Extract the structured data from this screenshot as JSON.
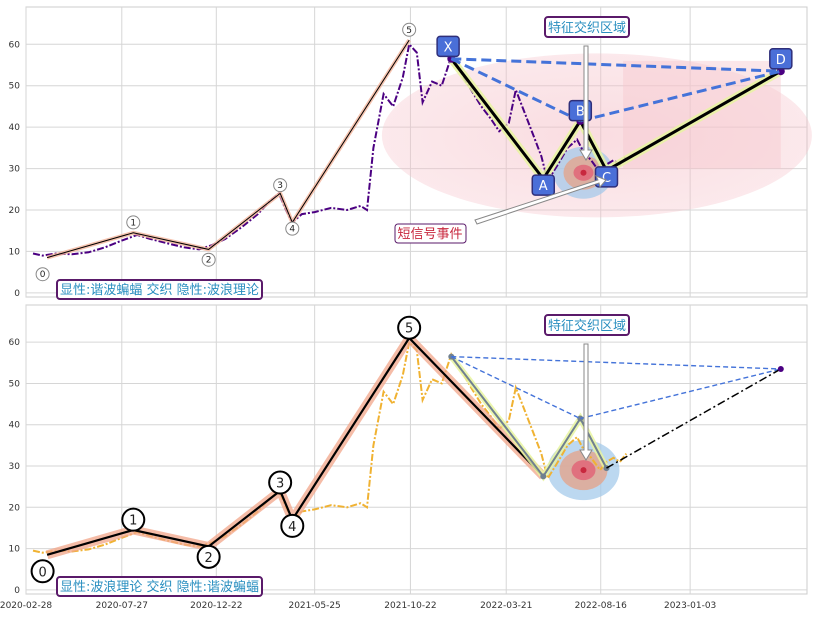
{
  "chart_data": [
    {
      "type": "line",
      "title": "",
      "ylim": [
        -1,
        69
      ],
      "yticks": [
        0,
        10,
        20,
        30,
        40,
        50,
        60
      ],
      "xlim": [
        "2020-02-28",
        "2023-07-05"
      ],
      "xticks": [
        "2020-02-28",
        "2020-07-27",
        "2020-12-22",
        "2021-05-25",
        "2021-10-22",
        "2022-03-21",
        "2022-08-16",
        "2023-01-03"
      ],
      "grid": true,
      "series": [
        {
          "style": "price-dashdot",
          "color": "#4b0082",
          "points": [
            [
              "2020-03-10",
              9.5
            ],
            [
              "2020-03-25",
              9
            ],
            [
              "2020-04-15",
              9.5
            ],
            [
              "2020-05-10",
              9.3
            ],
            [
              "2020-06-05",
              9.8
            ],
            [
              "2020-07-01",
              11
            ],
            [
              "2020-07-25",
              12.5
            ],
            [
              "2020-08-20",
              14
            ],
            [
              "2020-09-10",
              13
            ],
            [
              "2020-10-05",
              12
            ],
            [
              "2020-11-01",
              11
            ],
            [
              "2020-11-25",
              10.5
            ],
            [
              "2020-12-15",
              11.5
            ],
            [
              "2021-01-05",
              13
            ],
            [
              "2021-02-01",
              16
            ],
            [
              "2021-02-25",
              19
            ],
            [
              "2021-03-15",
              22
            ],
            [
              "2021-03-30",
              24
            ],
            [
              "2021-04-10",
              20
            ],
            [
              "2021-04-20",
              17
            ],
            [
              "2021-05-05",
              19
            ],
            [
              "2021-05-25",
              19.5
            ],
            [
              "2021-06-20",
              20.5
            ],
            [
              "2021-07-15",
              20
            ],
            [
              "2021-08-05",
              21
            ],
            [
              "2021-08-15",
              20
            ],
            [
              "2021-08-25",
              35
            ],
            [
              "2021-09-10",
              48
            ],
            [
              "2021-09-25",
              45
            ],
            [
              "2021-10-10",
              52
            ],
            [
              "2021-10-20",
              60
            ],
            [
              "2021-11-01",
              58
            ],
            [
              "2021-11-10",
              46
            ],
            [
              "2021-11-25",
              51
            ],
            [
              "2021-12-10",
              50
            ],
            [
              "2021-12-25",
              57
            ],
            [
              "2022-01-10",
              53
            ],
            [
              "2022-01-25",
              49
            ],
            [
              "2022-02-10",
              45
            ],
            [
              "2022-02-25",
              42
            ],
            [
              "2022-03-10",
              39
            ],
            [
              "2022-03-25",
              41
            ],
            [
              "2022-04-05",
              49
            ],
            [
              "2022-04-20",
              43
            ],
            [
              "2022-05-05",
              37
            ],
            [
              "2022-05-15",
              33
            ],
            [
              "2022-05-25",
              27
            ],
            [
              "2022-06-10",
              31
            ],
            [
              "2022-06-25",
              35
            ],
            [
              "2022-07-10",
              37
            ],
            [
              "2022-07-20",
              34
            ],
            [
              "2022-08-01",
              32
            ],
            [
              "2022-08-15",
              29
            ],
            [
              "2022-08-25",
              31
            ],
            [
              "2022-09-05",
              32
            ],
            [
              "2022-09-15",
              31
            ],
            [
              "2022-09-25",
              33
            ]
          ]
        },
        {
          "style": "wave",
          "color": "#000000",
          "points": [
            [
              "2020-04-01",
              8.5
            ],
            [
              "2020-08-14",
              14.5
            ],
            [
              "2020-12-10",
              10.5
            ],
            [
              "2021-04-01",
              24
            ],
            [
              "2021-04-20",
              17
            ],
            [
              "2021-10-20",
              61
            ]
          ]
        },
        {
          "style": "harmonic-legs",
          "color": "#000000",
          "points": [
            [
              "2021-12-25",
              56.5
            ],
            [
              "2022-05-18",
              27.5
            ],
            [
              "2022-07-15",
              41.5
            ],
            [
              "2022-08-25",
              29.5
            ],
            [
              "2023-05-25",
              53.5
            ]
          ]
        },
        {
          "style": "harmonic-dashed",
          "color": "#4473d9",
          "segments": [
            [
              [
                "2021-12-25",
                56.5
              ],
              [
                "2023-05-25",
                53.5
              ]
            ],
            [
              [
                "2021-12-25",
                56.5
              ],
              [
                "2022-07-15",
                41.5
              ]
            ],
            [
              [
                "2022-07-15",
                41.5
              ],
              [
                "2023-05-25",
                53.5
              ]
            ]
          ]
        }
      ],
      "wave_markers": [
        {
          "label": "0",
          "x": "2020-03-25",
          "y": 4.5
        },
        {
          "label": "1",
          "x": "2020-08-14",
          "y": 17
        },
        {
          "label": "2",
          "x": "2020-12-10",
          "y": 8
        },
        {
          "label": "3",
          "x": "2021-04-01",
          "y": 26
        },
        {
          "label": "4",
          "x": "2021-04-20",
          "y": 15.5
        },
        {
          "label": "5",
          "x": "2021-10-20",
          "y": 63.5
        }
      ],
      "harmonic_points": [
        {
          "label": "X",
          "x": "2021-12-20",
          "y": 59.5
        },
        {
          "label": "A",
          "x": "2022-05-18",
          "y": 26
        },
        {
          "label": "B",
          "x": "2022-07-15",
          "y": 44
        },
        {
          "label": "C",
          "x": "2022-08-25",
          "y": 28
        },
        {
          "label": "D",
          "x": "2023-05-25",
          "y": 56.5
        }
      ],
      "annotations": {
        "feature_zone": "特征交织区域",
        "short_signal": "短信号事件",
        "legend_note": "显性:谐波蝙蝠 交织 隐性:波浪理论"
      }
    },
    {
      "type": "line",
      "title": "",
      "ylim": [
        -1,
        69
      ],
      "yticks": [
        0,
        10,
        20,
        30,
        40,
        50,
        60
      ],
      "xlim": [
        "2020-02-28",
        "2023-07-05"
      ],
      "xticks": [
        "2020-02-28",
        "2020-07-27",
        "2020-12-22",
        "2021-05-25",
        "2021-10-22",
        "2022-03-21",
        "2022-08-16",
        "2023-01-03"
      ],
      "grid": true,
      "series": [
        {
          "style": "price-dashdot",
          "color": "#f0b232",
          "points": [
            [
              "2020-03-10",
              9.5
            ],
            [
              "2020-03-25",
              9
            ],
            [
              "2020-04-15",
              9.5
            ],
            [
              "2020-05-10",
              9.3
            ],
            [
              "2020-06-05",
              9.8
            ],
            [
              "2020-07-01",
              11
            ],
            [
              "2020-07-25",
              12.5
            ],
            [
              "2020-08-20",
              14
            ],
            [
              "2020-09-10",
              13
            ],
            [
              "2020-10-05",
              12
            ],
            [
              "2020-11-01",
              11
            ],
            [
              "2020-11-25",
              10.5
            ],
            [
              "2020-12-15",
              11.5
            ],
            [
              "2021-01-05",
              13
            ],
            [
              "2021-02-01",
              16
            ],
            [
              "2021-02-25",
              19
            ],
            [
              "2021-03-15",
              22
            ],
            [
              "2021-03-30",
              24
            ],
            [
              "2021-04-10",
              20
            ],
            [
              "2021-04-20",
              17
            ],
            [
              "2021-05-05",
              19
            ],
            [
              "2021-05-25",
              19.5
            ],
            [
              "2021-06-20",
              20.5
            ],
            [
              "2021-07-15",
              20
            ],
            [
              "2021-08-05",
              21
            ],
            [
              "2021-08-15",
              20
            ],
            [
              "2021-08-25",
              35
            ],
            [
              "2021-09-10",
              48
            ],
            [
              "2021-09-25",
              45
            ],
            [
              "2021-10-10",
              52
            ],
            [
              "2021-10-20",
              60
            ],
            [
              "2021-11-01",
              58
            ],
            [
              "2021-11-10",
              46
            ],
            [
              "2021-11-25",
              51
            ],
            [
              "2021-12-10",
              50
            ],
            [
              "2021-12-25",
              57
            ],
            [
              "2022-01-10",
              53
            ],
            [
              "2022-01-25",
              49
            ],
            [
              "2022-02-10",
              45
            ],
            [
              "2022-02-25",
              42
            ],
            [
              "2022-03-10",
              39
            ],
            [
              "2022-03-25",
              41
            ],
            [
              "2022-04-05",
              49
            ],
            [
              "2022-04-20",
              43
            ],
            [
              "2022-05-05",
              37
            ],
            [
              "2022-05-15",
              33
            ],
            [
              "2022-05-25",
              27
            ],
            [
              "2022-06-10",
              31
            ],
            [
              "2022-06-25",
              35
            ],
            [
              "2022-07-10",
              37
            ],
            [
              "2022-07-20",
              34
            ],
            [
              "2022-08-01",
              32
            ],
            [
              "2022-08-15",
              29
            ],
            [
              "2022-08-25",
              31
            ],
            [
              "2022-09-05",
              32
            ],
            [
              "2022-09-15",
              31
            ],
            [
              "2022-09-25",
              33
            ]
          ]
        },
        {
          "style": "wave-bold",
          "color": "#000000",
          "points": [
            [
              "2020-04-01",
              8.5
            ],
            [
              "2020-08-14",
              14.5
            ],
            [
              "2020-12-10",
              10.5
            ],
            [
              "2021-04-01",
              24
            ],
            [
              "2021-04-20",
              17
            ],
            [
              "2021-10-20",
              61
            ],
            [
              "2022-05-18",
              27.5
            ]
          ]
        },
        {
          "style": "harmonic-legs",
          "color": "#708090",
          "points": [
            [
              "2021-12-25",
              56.5
            ],
            [
              "2022-05-18",
              27.5
            ],
            [
              "2022-07-15",
              41.5
            ],
            [
              "2022-08-25",
              29.5
            ]
          ]
        },
        {
          "style": "harmonic-dashed",
          "color": "#4473d9",
          "segments": [
            [
              [
                "2021-12-25",
                56.5
              ],
              [
                "2023-05-25",
                53.5
              ]
            ],
            [
              [
                "2021-12-25",
                56.5
              ],
              [
                "2022-07-15",
                41.5
              ]
            ],
            [
              [
                "2022-07-15",
                41.5
              ],
              [
                "2023-05-25",
                53.5
              ]
            ]
          ]
        },
        {
          "style": "projection-dashdot",
          "color": "#000000",
          "points": [
            [
              "2022-08-25",
              29.5
            ],
            [
              "2023-05-25",
              53.5
            ]
          ]
        }
      ],
      "wave_markers": [
        {
          "label": "0",
          "x": "2020-03-25",
          "y": 4.5
        },
        {
          "label": "1",
          "x": "2020-08-14",
          "y": 17
        },
        {
          "label": "2",
          "x": "2020-12-10",
          "y": 8
        },
        {
          "label": "3",
          "x": "2021-04-01",
          "y": 26
        },
        {
          "label": "4",
          "x": "2021-04-20",
          "y": 15.5
        },
        {
          "label": "5",
          "x": "2021-10-20",
          "y": 63.5
        }
      ],
      "annotations": {
        "feature_zone": "特征交织区域",
        "legend_note": "显性:波浪理论 交织 隐性:谐波蝙蝠"
      }
    }
  ]
}
